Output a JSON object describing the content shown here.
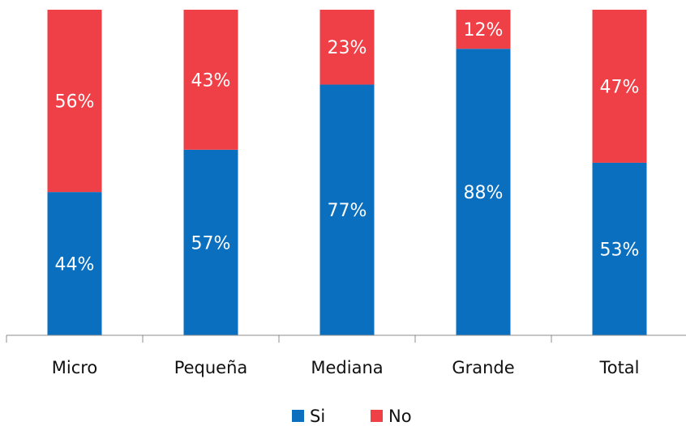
{
  "chart_data": {
    "type": "bar",
    "stacked": true,
    "percent": true,
    "categories": [
      "Micro",
      "Pequeña",
      "Mediana",
      "Grande",
      "Total"
    ],
    "series": [
      {
        "name": "Si",
        "color": "#0b6fbf",
        "values": [
          44,
          57,
          77,
          88,
          53
        ],
        "labels": [
          "44%",
          "57%",
          "77%",
          "88%",
          "53%"
        ]
      },
      {
        "name": "No",
        "color": "#ef4047",
        "values": [
          56,
          43,
          23,
          12,
          47
        ],
        "labels": [
          "56%",
          "43%",
          "23%",
          "12%",
          "47%"
        ]
      }
    ],
    "ylim": [
      0,
      100
    ],
    "grid": false,
    "legend_position": "bottom-center"
  }
}
